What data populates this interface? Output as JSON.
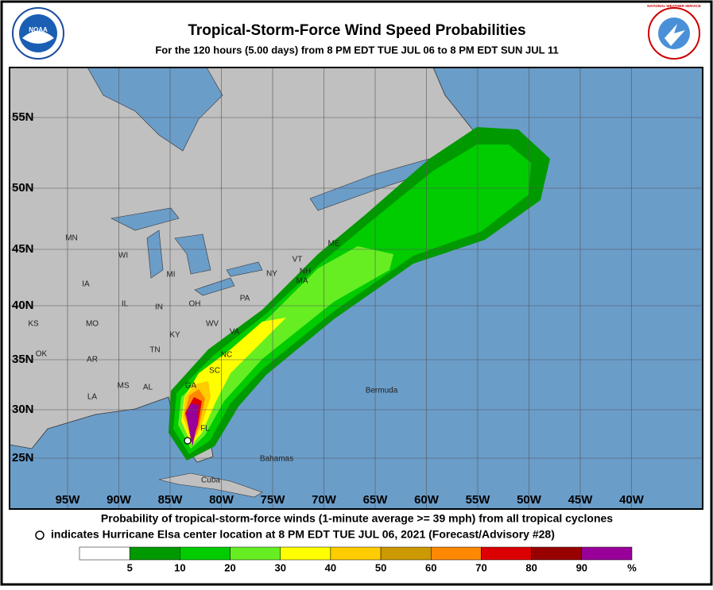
{
  "header": {
    "title": "Tropical-Storm-Force Wind Speed Probabilities",
    "subtitle": "For the 120 hours (5.00 days) from 8 PM EDT TUE JUL 06 to 8 PM EDT SUN JUL 11"
  },
  "logos": {
    "left": "NOAA",
    "right": "NATIONAL WEATHER SERVICE"
  },
  "map": {
    "latitude_labels": [
      "55N",
      "50N",
      "45N",
      "40N",
      "35N",
      "30N",
      "25N"
    ],
    "longitude_labels": [
      "95W",
      "90W",
      "85W",
      "80W",
      "75W",
      "70W",
      "65W",
      "60W",
      "55W",
      "50W",
      "45W",
      "40W"
    ],
    "region_labels": [
      "MN",
      "WI",
      "MI",
      "IA",
      "IL",
      "IN",
      "OH",
      "PA",
      "NY",
      "VT",
      "NH",
      "MA",
      "ME",
      "KS",
      "MO",
      "KY",
      "WV",
      "VA",
      "NC",
      "TN",
      "OK",
      "AR",
      "SC",
      "GA",
      "MS",
      "AL",
      "LA",
      "FL",
      "Bermuda",
      "Bahamas",
      "Cuba"
    ]
  },
  "footer": {
    "line1": "Probability of tropical-storm-force winds (1-minute average >= 39 mph) from all tropical cyclones",
    "line2": "indicates Hurricane Elsa center location at 8 PM EDT TUE JUL 06, 2021 (Forecast/Advisory #28)"
  },
  "legend": {
    "colors": [
      "#ffffff",
      "#009a00",
      "#00cc00",
      "#66ee22",
      "#ffff00",
      "#ffcc00",
      "#cc9900",
      "#ff8800",
      "#dd0000",
      "#990000",
      "#990099"
    ],
    "labels": [
      "5",
      "10",
      "20",
      "30",
      "40",
      "50",
      "60",
      "70",
      "80",
      "90",
      "%"
    ]
  }
}
